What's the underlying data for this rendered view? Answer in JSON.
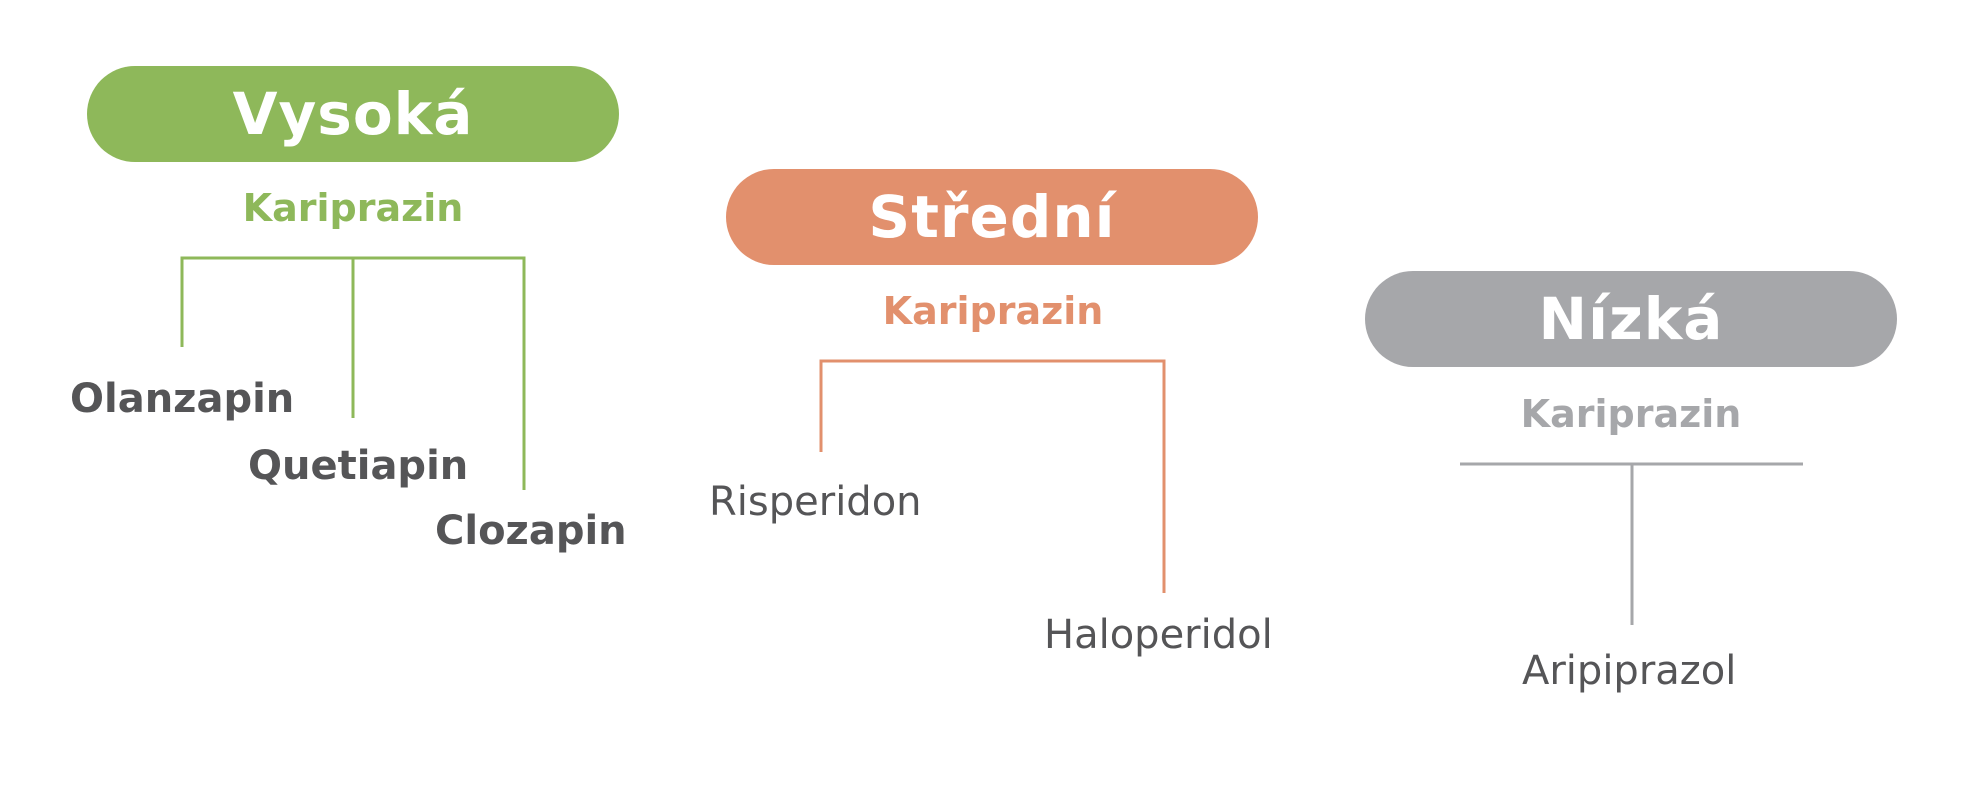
{
  "colors": {
    "high": "#8eb85a",
    "medium": "#e2906d",
    "low": "#a6a7aa",
    "drug_text": "#555557"
  },
  "groups": [
    {
      "key": "high",
      "title": "Vysoká",
      "subtitle": "Kariprazin",
      "drugs": [
        "Olanzapin",
        "Quetiapin",
        "Clozapin"
      ]
    },
    {
      "key": "medium",
      "title": "Střední",
      "subtitle": "Kariprazin",
      "drugs": [
        "Risperidon",
        "Haloperidol"
      ]
    },
    {
      "key": "low",
      "title": "Nízká",
      "subtitle": "Kariprazin",
      "drugs": [
        "Aripiprazol"
      ]
    }
  ]
}
